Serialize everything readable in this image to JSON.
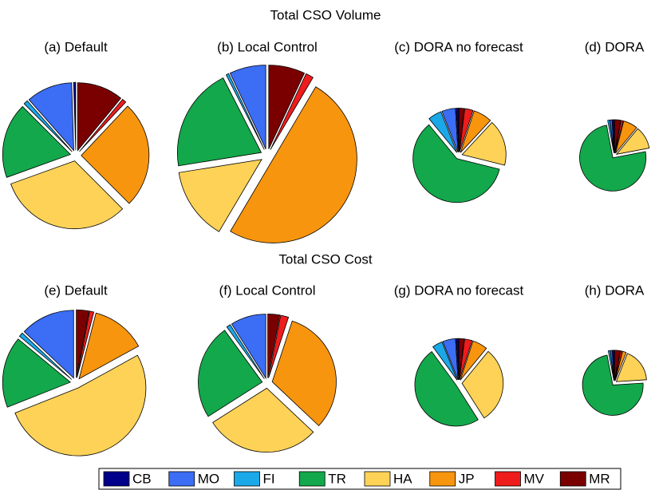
{
  "row_titles": [
    "Total CSO Volume",
    "Total CSO Cost"
  ],
  "legend": {
    "labels": [
      "CB",
      "MO",
      "FI",
      "TR",
      "HA",
      "JP",
      "MV",
      "MR"
    ],
    "colors": [
      "#00008b",
      "#3b6df5",
      "#1ba8e8",
      "#13a84b",
      "#fdd257",
      "#f7950f",
      "#ee1c1c",
      "#7a0000"
    ]
  },
  "chart_data": [
    {
      "type": "pie",
      "title": "(a) Default",
      "values": [
        0.5,
        11,
        1,
        18,
        32,
        25.5,
        1,
        11
      ]
    },
    {
      "type": "pie",
      "title": "(b) Local Control",
      "values": [
        0,
        10.7,
        0.8,
        30.6,
        21.4,
        76.5,
        2.3,
        10.7
      ]
    },
    {
      "type": "pie",
      "title": "(c) DORA no forecast",
      "values": [
        0.4,
        2.1,
        2.1,
        25.2,
        7.1,
        2.9,
        1.3,
        0.8
      ]
    },
    {
      "type": "pie",
      "title": "(d) DORA",
      "values": [
        0.24,
        0.24,
        0.24,
        18,
        2.64,
        1.68,
        0.24,
        0.72
      ]
    },
    {
      "type": "pie",
      "title": "(e) Default",
      "values": [
        0,
        13,
        1,
        17,
        52,
        13,
        1,
        3
      ]
    },
    {
      "type": "pie",
      "title": "(f) Local Control",
      "values": [
        0,
        8,
        0.9,
        21.4,
        25.8,
        28.5,
        1.8,
        2.7
      ]
    },
    {
      "type": "pie",
      "title": "(g) DORA no forecast",
      "values": [
        0.37,
        1.85,
        1.48,
        18.1,
        11.1,
        2.2,
        1.1,
        0.74
      ]
    },
    {
      "type": "pie",
      "title": "(h) DORA",
      "values": [
        0.2,
        0.2,
        0.2,
        14.6,
        3.6,
        0.4,
        0.2,
        0.6
      ]
    }
  ]
}
